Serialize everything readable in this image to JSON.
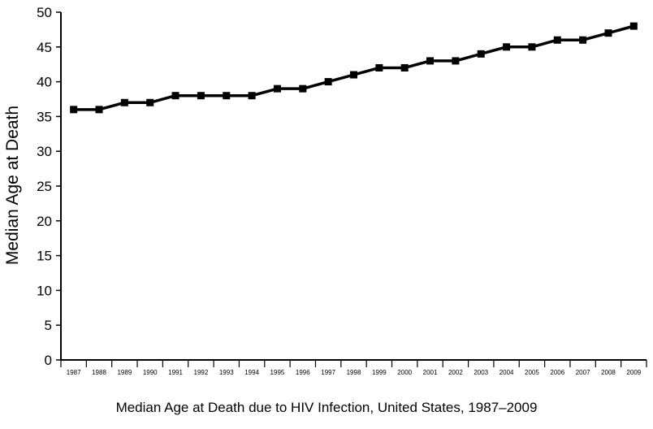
{
  "chart_data": {
    "type": "line",
    "caption": "Median Age at Death due to HIV Infection, United States, 1987–2009",
    "ylabel": "Median Age at Death",
    "xlabel": "",
    "ylim": [
      0,
      50
    ],
    "yticks": [
      0,
      5,
      10,
      15,
      20,
      25,
      30,
      35,
      40,
      45,
      50
    ],
    "categories": [
      "1987",
      "1988",
      "1989",
      "1990",
      "1991",
      "1992",
      "1993",
      "1994",
      "1995",
      "1996",
      "1997",
      "1998",
      "1999",
      "2000",
      "2001",
      "2002",
      "2003",
      "2004",
      "2005",
      "2006",
      "2007",
      "2008",
      "2009"
    ],
    "values": [
      36,
      36,
      37,
      37,
      38,
      38,
      38,
      38,
      39,
      39,
      40,
      41,
      42,
      42,
      43,
      43,
      44,
      45,
      45,
      46,
      46,
      47,
      48
    ],
    "grid": false,
    "line_color": "#000000",
    "marker": "square"
  }
}
